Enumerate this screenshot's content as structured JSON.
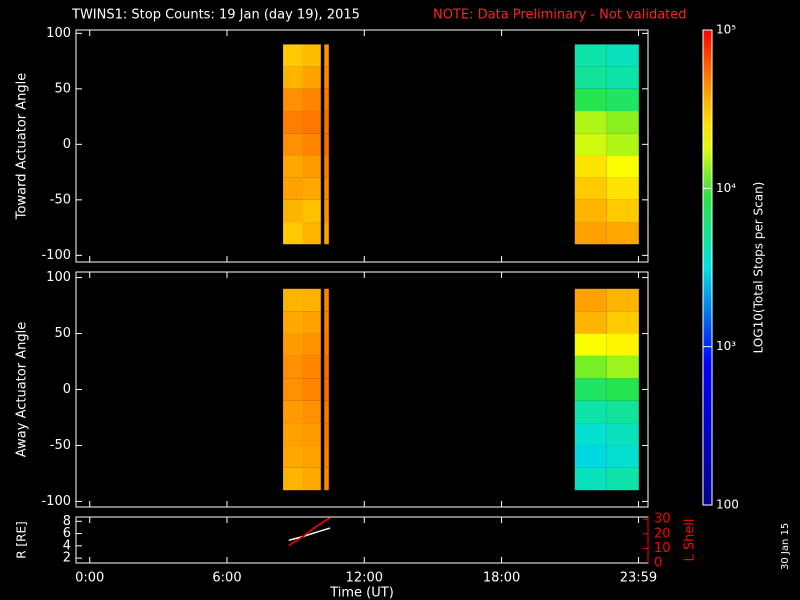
{
  "title": "TWINS1: Stop Counts: 19 Jan (day  19), 2015",
  "note": "NOTE: Data Preliminary - Not validated",
  "date_stamp": "30 Jan 15",
  "colorbar": {
    "label": "LOG10(Total Stops per Scan)",
    "log": true,
    "zlim": [
      100,
      100000
    ],
    "zticks": [
      100,
      {
        "value": 1000,
        "label": "10³"
      },
      {
        "value": 10000,
        "label": "10⁴"
      },
      {
        "value": 100000,
        "label": "10⁵"
      }
    ]
  },
  "chart_data": [
    {
      "type": "heatmap",
      "ylabel": "Toward Actuator Angle",
      "xlim": [
        -0.6,
        24.4
      ],
      "ylim": [
        -106,
        103
      ],
      "yticks": [
        -100,
        -50,
        0,
        50,
        100
      ],
      "x_edges": [
        8.45,
        9.3,
        10.1,
        10.25,
        10.45,
        21.2,
        22.6,
        24.0
      ],
      "y_edges": [
        -90,
        -70,
        -50,
        -30,
        -10,
        10,
        30,
        50,
        70,
        90
      ],
      "z": [
        [
          30000,
          35000,
          null,
          40000,
          null,
          40000,
          38000
        ],
        [
          35000,
          32000,
          null,
          45000,
          null,
          35000,
          30000
        ],
        [
          40000,
          38000,
          null,
          48000,
          null,
          30000,
          25000
        ],
        [
          38000,
          42000,
          null,
          50000,
          null,
          25000,
          20000
        ],
        [
          45000,
          48000,
          null,
          55000,
          null,
          17000,
          15000
        ],
        [
          50000,
          52000,
          null,
          55000,
          null,
          15000,
          13000
        ],
        [
          45000,
          48000,
          null,
          52000,
          null,
          8000,
          7000
        ],
        [
          35000,
          40000,
          null,
          48000,
          null,
          5000,
          4500
        ],
        [
          30000,
          33000,
          null,
          45000,
          null,
          4500,
          4000
        ]
      ]
    },
    {
      "type": "heatmap",
      "ylabel": "Away Actuator Angle",
      "xlim": [
        -0.6,
        24.4
      ],
      "ylim": [
        -105,
        105
      ],
      "yticks": [
        -100,
        -50,
        0,
        50,
        100
      ],
      "x_edges": [
        8.45,
        9.3,
        10.1,
        10.25,
        10.45,
        21.2,
        22.6,
        24.0
      ],
      "y_edges": [
        -90,
        -70,
        -50,
        -30,
        -10,
        10,
        30,
        50,
        70,
        90
      ],
      "z": [
        [
          35000,
          38000,
          null,
          48000,
          null,
          4000,
          4500
        ],
        [
          38000,
          40000,
          null,
          50000,
          null,
          3000,
          3500
        ],
        [
          40000,
          42000,
          null,
          52000,
          null,
          3500,
          4000
        ],
        [
          42000,
          45000,
          null,
          52000,
          null,
          4500,
          5000
        ],
        [
          45000,
          48000,
          null,
          55000,
          null,
          7000,
          8000
        ],
        [
          45000,
          48000,
          null,
          55000,
          null,
          12000,
          14000
        ],
        [
          42000,
          45000,
          null,
          52000,
          null,
          20000,
          22000
        ],
        [
          38000,
          40000,
          null,
          50000,
          null,
          35000,
          30000
        ],
        [
          35000,
          36000,
          null,
          48000,
          null,
          40000,
          35000
        ]
      ]
    },
    {
      "type": "line",
      "ylabel": "R [RE]",
      "y2label": "L Shell",
      "xlabel": "Time (UT)",
      "xlim": [
        -0.6,
        24.4
      ],
      "ylim": [
        1.2,
        8.7
      ],
      "yticks": [
        2,
        4,
        6,
        8
      ],
      "y2lim": [
        0,
        31.5
      ],
      "y2ticks": [
        0,
        10,
        20,
        30
      ],
      "xticks": [
        {
          "value": 0,
          "label": "0:00"
        },
        {
          "value": 6,
          "label": "6:00"
        },
        {
          "value": 12,
          "label": "12:00"
        },
        {
          "value": 18,
          "label": "18:00"
        },
        {
          "value": 23.983,
          "label": "23:59"
        }
      ],
      "x": [
        8.7,
        9.3,
        9.9,
        10.5
      ],
      "series": [
        {
          "name": "R",
          "color": "#ffffff",
          "values": [
            4.9,
            5.5,
            6.2,
            6.9
          ]
        },
        {
          "name": "L Shell",
          "color": "#ff0000",
          "axis": "y2",
          "values": [
            12,
            18,
            25,
            31
          ]
        }
      ]
    }
  ]
}
